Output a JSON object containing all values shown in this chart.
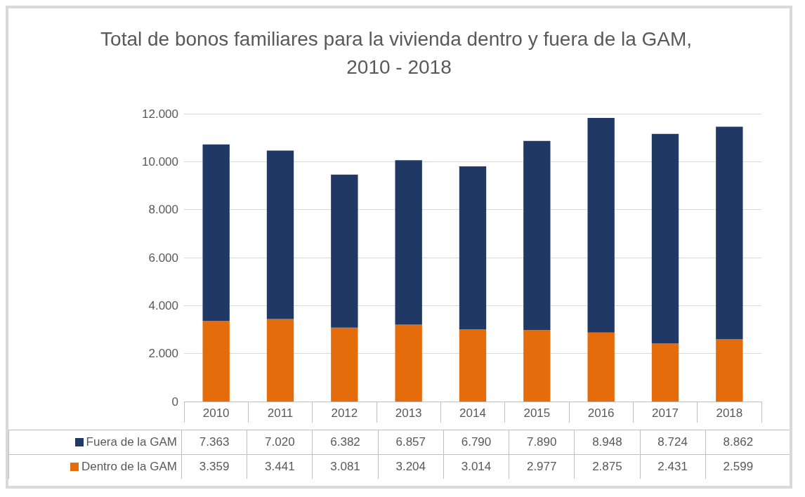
{
  "chart_data": {
    "type": "bar",
    "title": "Total de bonos familiares para la vivienda dentro y fuera de la GAM, 2010 - 2018",
    "categories": [
      "2010",
      "2011",
      "2012",
      "2013",
      "2014",
      "2015",
      "2016",
      "2017",
      "2018"
    ],
    "stacked": true,
    "series": [
      {
        "name": "Dentro de la GAM",
        "color": "#e46c0a",
        "values": [
          3359,
          3441,
          3081,
          3204,
          3014,
          2977,
          2875,
          2431,
          2599
        ],
        "value_labels": [
          "3.359",
          "3.441",
          "3.081",
          "3.204",
          "3.014",
          "2.977",
          "2.875",
          "2.431",
          "2.599"
        ]
      },
      {
        "name": "Fuera de la GAM",
        "color": "#1f3864",
        "values": [
          7363,
          7020,
          6382,
          6857,
          6790,
          7890,
          8948,
          8724,
          8862
        ],
        "value_labels": [
          "7.363",
          "7.020",
          "6.382",
          "6.857",
          "6.790",
          "7.890",
          "8.948",
          "8.724",
          "8.862"
        ]
      }
    ],
    "ylim": [
      0,
      12000
    ],
    "yticks": [
      0,
      {
        "value": 2000,
        "label": "2.000"
      },
      {
        "value": 4000,
        "label": "4.000"
      },
      {
        "value": 6000,
        "label": "6.000"
      },
      {
        "value": 8000,
        "label": "8.000"
      },
      {
        "value": 10000,
        "label": "10.000"
      },
      {
        "value": 12000,
        "label": "12.000"
      }
    ],
    "grid": "y",
    "legend": "bottom"
  }
}
